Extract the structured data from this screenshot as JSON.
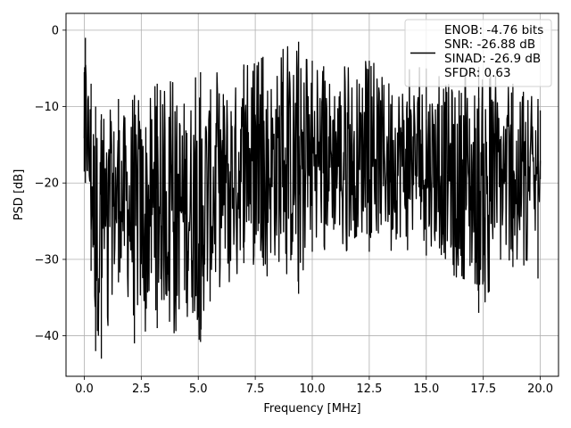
{
  "chart_data": {
    "type": "line",
    "title": "",
    "xlabel": "Frequency [MHz]",
    "ylabel": "PSD [dB]",
    "xlim": [
      -0.8,
      20.8
    ],
    "ylim": [
      -45.3,
      2.2
    ],
    "grid": true,
    "xticks": [
      0.0,
      2.5,
      5.0,
      7.5,
      10.0,
      12.5,
      15.0,
      17.5,
      20.0
    ],
    "xtick_labels": [
      "0.0",
      "2.5",
      "5.0",
      "7.5",
      "10.0",
      "12.5",
      "15.0",
      "17.5",
      "20.0"
    ],
    "yticks": [
      0,
      -10,
      -20,
      -30,
      -40
    ],
    "ytick_labels": [
      "0",
      "−10",
      "−20",
      "−30",
      "−40"
    ],
    "legend_position": "top-right",
    "series": [
      {
        "name": "ENOB: -4.76 bits\nSNR: -26.88 dB\nSINAD: -26.9 dB\nSFDR: 0.63",
        "legend_lines": [
          "ENOB: -4.76 bits",
          "SNR: -26.88 dB",
          "SINAD: -26.9 dB",
          "SFDR: 0.63"
        ],
        "color": "#000000",
        "x_range": [
          0.0,
          20.0
        ],
        "x_step": 0.02,
        "envelope": [
          {
            "x": 0.0,
            "upper": -5.5,
            "lower": -18.5
          },
          {
            "x": 0.05,
            "upper": -1.0,
            "lower": -20.0
          },
          {
            "x": 0.3,
            "upper": -7.0,
            "lower": -31.5
          },
          {
            "x": 0.5,
            "upper": -10.0,
            "lower": -42.0
          },
          {
            "x": 0.75,
            "upper": -11.0,
            "lower": -43.0
          },
          {
            "x": 1.5,
            "upper": -9.0,
            "lower": -33.0
          },
          {
            "x": 2.2,
            "upper": -8.5,
            "lower": -41.0
          },
          {
            "x": 3.2,
            "upper": -7.0,
            "lower": -39.0
          },
          {
            "x": 5.1,
            "upper": -5.5,
            "lower": -40.8
          },
          {
            "x": 7.0,
            "upper": -4.5,
            "lower": -30.5
          },
          {
            "x": 9.4,
            "upper": -1.5,
            "lower": -34.5
          },
          {
            "x": 10.0,
            "upper": -4.0,
            "lower": -29.0
          },
          {
            "x": 12.5,
            "upper": -4.0,
            "lower": -29.0
          },
          {
            "x": 15.0,
            "upper": -5.0,
            "lower": -29.5
          },
          {
            "x": 17.3,
            "upper": -4.8,
            "lower": -37.0
          },
          {
            "x": 18.8,
            "upper": -7.0,
            "lower": -31.0
          },
          {
            "x": 19.9,
            "upper": -9.0,
            "lower": -32.5
          },
          {
            "x": 20.0,
            "upper": -10.5,
            "lower": -19.5
          }
        ]
      }
    ]
  }
}
